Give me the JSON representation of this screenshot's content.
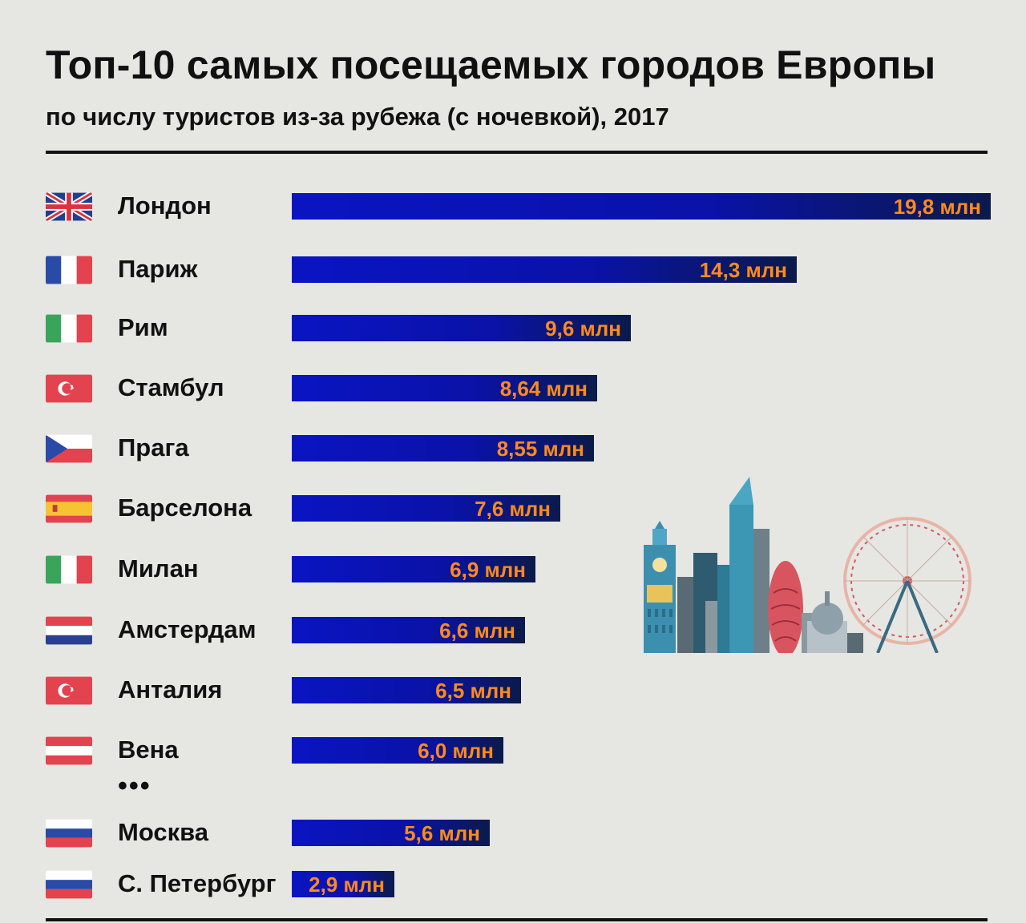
{
  "header": {
    "title": "Топ-10 самых посещаемых городов Европы",
    "subtitle": "по числу туристов из-за рубежа (с ночевкой), 2017"
  },
  "ellipsis": "•••",
  "colors": {
    "bar": "#0a14c2",
    "value_label": "#ff8a1c",
    "background": "#e6e7e2"
  },
  "chart_data": {
    "type": "bar",
    "orientation": "horizontal",
    "unit": "млн",
    "xlim": [
      0,
      19.8
    ],
    "grid": false,
    "categories": [
      "Лондон",
      "Париж",
      "Рим",
      "Стамбул",
      "Прага",
      "Барселона",
      "Милан",
      "Амстердам",
      "Анталия",
      "Вена",
      "Москва",
      "С. Петербург"
    ],
    "values": [
      19.8,
      14.3,
      9.6,
      8.64,
      8.55,
      7.6,
      6.9,
      6.6,
      6.5,
      6.0,
      5.6,
      2.9
    ],
    "labels": [
      "19,8 млн",
      "14,3 млн",
      "9,6 млн",
      "8,64 млн",
      "8,55 млн",
      "7,6 млн",
      "6,9 млн",
      "6,6 млн",
      "6,5 млн",
      "6,0 млн",
      "5,6 млн",
      "2,9 млн"
    ],
    "flags": [
      "uk-flag",
      "france-flag",
      "italy-flag",
      "turkey-flag",
      "czech-flag",
      "spain-flag",
      "italy-flag",
      "netherlands-flag",
      "turkey-flag",
      "austria-flag",
      "russia-flag",
      "russia-flag"
    ]
  },
  "illustration": "city-skyline-illustration"
}
